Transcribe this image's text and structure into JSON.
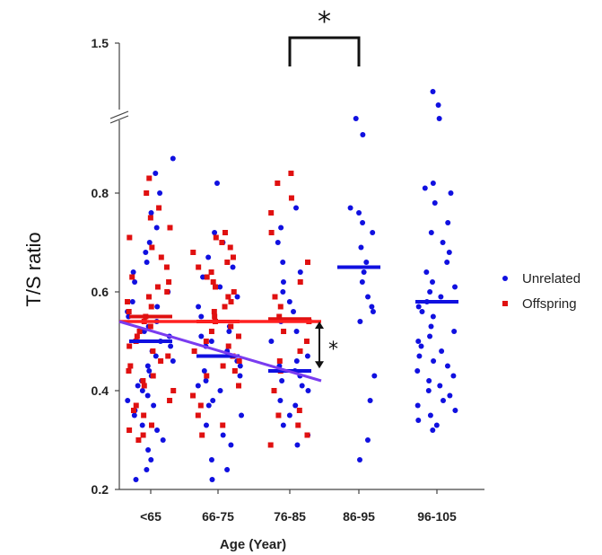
{
  "chart_data": {
    "type": "scatter",
    "title": "",
    "ylabel": "T/S ratio",
    "xlabel": "Age (Year)",
    "categories": [
      "<65",
      "66-75",
      "76-85",
      "86-95",
      "96-105"
    ],
    "y_ticks": [
      "0.2",
      "0.4",
      "0.6",
      "0.8",
      "1.5"
    ],
    "ylim_lower": [
      0.2,
      0.9
    ],
    "y_break": true,
    "legend_position": "right",
    "colors": {
      "unrelated": "#1010e0",
      "offspring": "#e01010",
      "trend_unrelated": "#7a3cf0",
      "trend_offspring": "#ff2020"
    },
    "series": [
      {
        "name": "Unrelated",
        "marker": "circle",
        "color": "#1010e0",
        "points": {
          "<65": [
            0.22,
            0.24,
            0.26,
            0.28,
            0.3,
            0.32,
            0.33,
            0.35,
            0.36,
            0.37,
            0.38,
            0.39,
            0.4,
            0.41,
            0.42,
            0.43,
            0.44,
            0.45,
            0.46,
            0.47,
            0.48,
            0.49,
            0.5,
            0.51,
            0.52,
            0.53,
            0.54,
            0.55,
            0.56,
            0.57,
            0.58,
            0.6,
            0.62,
            0.64,
            0.66,
            0.68,
            0.7,
            0.73,
            0.76,
            0.8,
            0.84,
            0.87
          ],
          "66-75": [
            0.22,
            0.24,
            0.26,
            0.29,
            0.31,
            0.33,
            0.35,
            0.37,
            0.38,
            0.4,
            0.41,
            0.42,
            0.43,
            0.44,
            0.45,
            0.46,
            0.47,
            0.48,
            0.49,
            0.5,
            0.51,
            0.52,
            0.53,
            0.55,
            0.57,
            0.59,
            0.61,
            0.63,
            0.65,
            0.67,
            0.7,
            0.72,
            0.82
          ],
          "76-85": [
            0.29,
            0.31,
            0.33,
            0.35,
            0.37,
            0.38,
            0.4,
            0.41,
            0.42,
            0.43,
            0.44,
            0.45,
            0.46,
            0.47,
            0.48,
            0.5,
            0.52,
            0.54,
            0.56,
            0.58,
            0.6,
            0.62,
            0.64,
            0.66,
            0.7,
            0.73,
            0.77
          ],
          "86-95": [
            0.26,
            0.3,
            0.38,
            0.43,
            0.54,
            0.56,
            0.57,
            0.59,
            0.62,
            0.64,
            0.66,
            0.69,
            0.72,
            0.74,
            0.76,
            0.77
          ],
          "96-105": [
            0.32,
            0.33,
            0.34,
            0.35,
            0.36,
            0.37,
            0.38,
            0.39,
            0.4,
            0.41,
            0.42,
            0.43,
            0.44,
            0.45,
            0.46,
            0.47,
            0.48,
            0.49,
            0.5,
            0.51,
            0.52,
            0.53,
            0.55,
            0.56,
            0.57,
            0.58,
            0.59,
            0.6,
            0.61,
            0.62,
            0.64,
            0.66,
            0.68,
            0.7,
            0.72,
            0.74,
            0.78,
            0.8,
            0.81,
            0.82
          ]
        },
        "points_above_break": {
          "86-95": [
            0.88,
            0.94
          ],
          "96-105": [
            0.94,
            0.99,
            1.04
          ]
        },
        "means": {
          "<65": 0.5,
          "66-75": 0.47,
          "76-85": 0.44,
          "86-95": 0.65,
          "96-105": 0.58
        }
      },
      {
        "name": "Offspring",
        "marker": "square",
        "color": "#e01010",
        "points": {
          "<65": [
            0.3,
            0.31,
            0.32,
            0.33,
            0.35,
            0.36,
            0.37,
            0.38,
            0.4,
            0.41,
            0.42,
            0.43,
            0.44,
            0.45,
            0.46,
            0.47,
            0.48,
            0.49,
            0.5,
            0.51,
            0.52,
            0.53,
            0.54,
            0.55,
            0.56,
            0.57,
            0.58,
            0.59,
            0.6,
            0.61,
            0.62,
            0.63,
            0.65,
            0.67,
            0.69,
            0.71,
            0.73,
            0.75,
            0.77,
            0.8,
            0.83
          ],
          "66-75": [
            0.31,
            0.33,
            0.35,
            0.37,
            0.39,
            0.41,
            0.43,
            0.44,
            0.45,
            0.46,
            0.47,
            0.48,
            0.49,
            0.5,
            0.51,
            0.52,
            0.53,
            0.54,
            0.55,
            0.56,
            0.57,
            0.58,
            0.59,
            0.6,
            0.61,
            0.62,
            0.63,
            0.64,
            0.65,
            0.66,
            0.67,
            0.68,
            0.69,
            0.7,
            0.71,
            0.72
          ],
          "76-85": [
            0.29,
            0.31,
            0.33,
            0.35,
            0.36,
            0.4,
            0.44,
            0.46,
            0.48,
            0.5,
            0.52,
            0.54,
            0.55,
            0.57,
            0.59,
            0.62,
            0.66,
            0.72,
            0.76,
            0.79,
            0.82,
            0.84
          ]
        },
        "means": {
          "<65": 0.55,
          "66-75": 0.54,
          "76-85": 0.545
        }
      }
    ],
    "trend_lines": [
      {
        "series": "Offspring",
        "from": {
          "category": "<65",
          "value": 0.54
        },
        "to": {
          "category": "76-85",
          "value": 0.54
        }
      },
      {
        "series": "Unrelated",
        "from": {
          "category": "<65",
          "value": 0.54
        },
        "to": {
          "category": "76-85",
          "value": 0.42
        }
      }
    ],
    "annotations": [
      {
        "type": "significance-bracket",
        "from": "76-85",
        "to": "86-95",
        "label": "*"
      },
      {
        "type": "double-arrow",
        "at": "76-85",
        "from_value": 0.54,
        "to_value": 0.445,
        "label": "*"
      }
    ]
  }
}
